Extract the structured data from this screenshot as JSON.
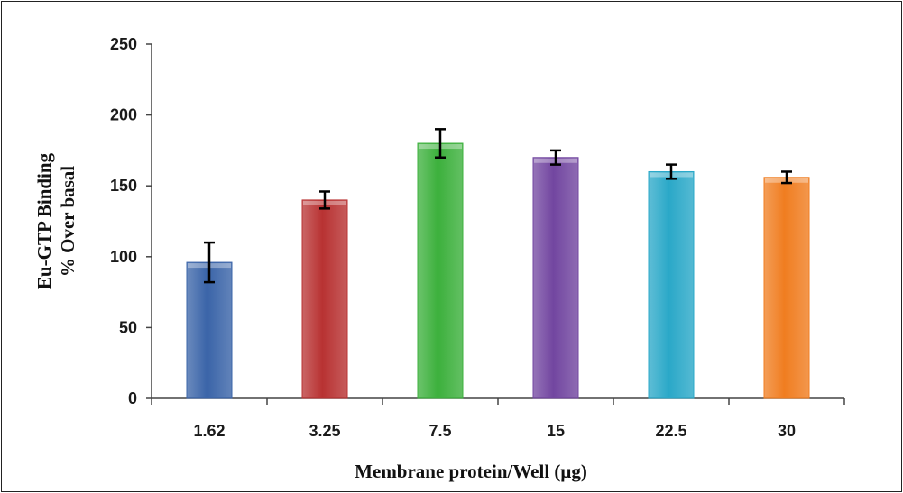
{
  "chart_data": {
    "type": "bar",
    "title": "",
    "xlabel": "Membrane protein/Well (μg)",
    "ylabel_lines": [
      "Eu-GTP Binding",
      "% Over basal"
    ],
    "categories": [
      "1.62",
      "3.25",
      "7.5",
      "15",
      "22.5",
      "30"
    ],
    "values": [
      96,
      140,
      180,
      170,
      160,
      156
    ],
    "errors": [
      14,
      6,
      10,
      5,
      5,
      4
    ],
    "colors": [
      "#3a64a8",
      "#b83232",
      "#3cb03c",
      "#7246a0",
      "#2aa8c8",
      "#f07d20"
    ],
    "ylim": [
      0,
      250
    ],
    "yticks": [
      "0",
      "50",
      "100",
      "150",
      "200",
      "250"
    ],
    "grid": false
  }
}
